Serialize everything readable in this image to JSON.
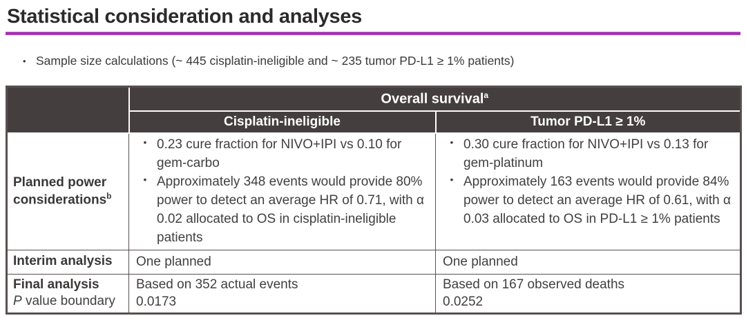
{
  "title": "Statistical consideration and analyses",
  "intro_bullet": "Sample size calculations (~ 445 cisplatin-ineligible and ~ 235 tumor PD-L1 ≥ 1% patients)",
  "colors": {
    "accent_line": "#A12CAE",
    "header_bg": "#443F3E",
    "header_text": "#FFFFFF",
    "body_text": "#404040",
    "border": "#56504F"
  },
  "table": {
    "header": {
      "overall": "Overall survival",
      "overall_sup": "a",
      "cisplatin": "Cisplatin-ineligible",
      "pdl1": "Tumor PD-L1 ≥ 1%"
    },
    "power": {
      "label": "Planned power considerations",
      "label_sup": "b",
      "cisplatin": [
        "0.23 cure fraction for NIVO+IPI vs 0.10 for gem-carbo",
        "Approximately 348 events would provide 80% power to detect an average HR of 0.71, with α 0.02 allocated to OS in cisplatin-ineligible patients"
      ],
      "pdl1": [
        "0.30 cure fraction for NIVO+IPI vs 0.13 for gem-platinum",
        "Approximately 163 events would provide 84% power to detect an average HR of 0.61, with α 0.03 allocated to OS in PD-L1 ≥ 1% patients"
      ]
    },
    "interim": {
      "label": "Interim analysis",
      "cisplatin": "One planned",
      "pdl1": "One planned"
    },
    "final": {
      "label_line1": "Final analysis",
      "label_p": "P",
      "label_rest": " value boundary",
      "cisplatin_line1": "Based on 352 actual events",
      "cisplatin_line2": "0.0173",
      "pdl1_line1": "Based on 167 observed deaths",
      "pdl1_line2": "0.0252"
    }
  }
}
